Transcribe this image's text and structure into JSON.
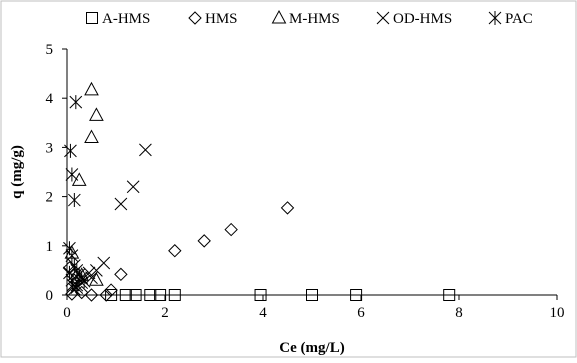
{
  "chart_data": {
    "type": "scatter",
    "title": "",
    "xlabel": "Ce (mg/L)",
    "ylabel": "q (mg/g)",
    "xlim": [
      0,
      10
    ],
    "ylim": [
      0,
      5
    ],
    "x_ticks": [
      "0",
      "2",
      "4",
      "6",
      "8",
      "10"
    ],
    "y_ticks": [
      "0",
      "1",
      "2",
      "3",
      "4",
      "5"
    ],
    "grid": false,
    "legend_position": "top",
    "series": [
      {
        "name": "A-HMS",
        "marker": "square",
        "points": [
          [
            0.9,
            0
          ],
          [
            1.2,
            0
          ],
          [
            1.4,
            0
          ],
          [
            1.7,
            0
          ],
          [
            1.9,
            0
          ],
          [
            2.2,
            0
          ],
          [
            3.95,
            0
          ],
          [
            5.0,
            0
          ],
          [
            5.9,
            0
          ],
          [
            7.8,
            0
          ]
        ]
      },
      {
        "name": "HMS",
        "marker": "diamond",
        "points": [
          [
            0.1,
            0.02
          ],
          [
            0.3,
            0.05
          ],
          [
            0.5,
            0
          ],
          [
            0.8,
            0
          ],
          [
            1.1,
            0.42
          ],
          [
            2.2,
            0.9
          ],
          [
            2.8,
            1.1
          ],
          [
            3.35,
            1.33
          ],
          [
            4.5,
            1.77
          ],
          [
            0.15,
            0.3
          ],
          [
            0.05,
            0.55
          ],
          [
            0.9,
            0.1
          ]
        ]
      },
      {
        "name": "M-HMS",
        "marker": "triangle",
        "points": [
          [
            0.5,
            4.17
          ],
          [
            0.6,
            3.65
          ],
          [
            0.5,
            3.2
          ],
          [
            0.25,
            2.33
          ],
          [
            0.1,
            0.85
          ],
          [
            0.3,
            0.4
          ],
          [
            0.6,
            0.3
          ]
        ]
      },
      {
        "name": "OD-HMS",
        "marker": "x",
        "points": [
          [
            1.6,
            2.95
          ],
          [
            1.35,
            2.2
          ],
          [
            1.1,
            1.85
          ],
          [
            0.75,
            0.65
          ],
          [
            0.6,
            0.5
          ],
          [
            0.5,
            0.35
          ],
          [
            0.3,
            0.25
          ],
          [
            0.2,
            0.2
          ],
          [
            0.15,
            0.12
          ],
          [
            0.45,
            0.45
          ]
        ]
      },
      {
        "name": "PAC",
        "marker": "asterisk",
        "points": [
          [
            0.18,
            3.92
          ],
          [
            0.07,
            2.93
          ],
          [
            0.1,
            2.45
          ],
          [
            0.15,
            1.93
          ],
          [
            0.05,
            0.95
          ],
          [
            0.1,
            0.8
          ],
          [
            0.15,
            0.6
          ],
          [
            0.2,
            0.5
          ],
          [
            0.25,
            0.42
          ],
          [
            0.3,
            0.35
          ],
          [
            0.35,
            0.28
          ],
          [
            0.05,
            0.45
          ],
          [
            0.1,
            0.3
          ],
          [
            0.12,
            0.2
          ],
          [
            0.2,
            0.15
          ]
        ]
      }
    ]
  }
}
